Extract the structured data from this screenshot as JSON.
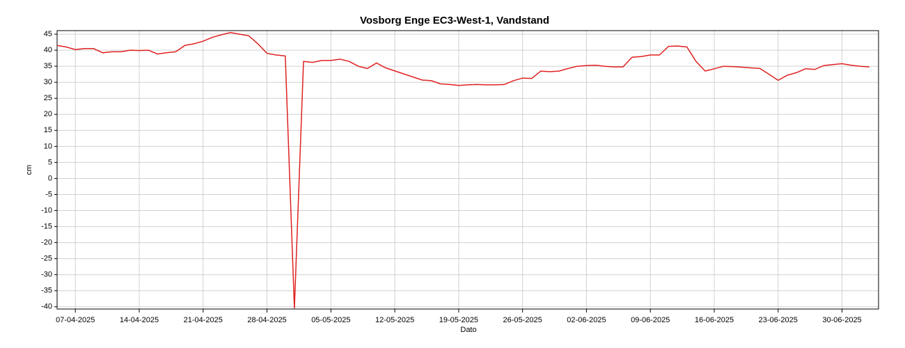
{
  "chart_data": {
    "type": "line",
    "title": "Vosborg Enge EC3-West-1, Vandstand",
    "xlabel": "Dato",
    "ylabel": "cm",
    "x": [
      "05-04-2025",
      "06-04-2025",
      "07-04-2025",
      "08-04-2025",
      "09-04-2025",
      "10-04-2025",
      "11-04-2025",
      "12-04-2025",
      "13-04-2025",
      "14-04-2025",
      "15-04-2025",
      "16-04-2025",
      "17-04-2025",
      "18-04-2025",
      "19-04-2025",
      "20-04-2025",
      "21-04-2025",
      "22-04-2025",
      "23-04-2025",
      "24-04-2025",
      "25-04-2025",
      "26-04-2025",
      "27-04-2025",
      "28-04-2025",
      "29-04-2025",
      "30-04-2025",
      "01-05-2025",
      "02-05-2025",
      "03-05-2025",
      "04-05-2025",
      "05-05-2025",
      "06-05-2025",
      "07-05-2025",
      "08-05-2025",
      "09-05-2025",
      "10-05-2025",
      "11-05-2025",
      "15-05-2025",
      "16-05-2025",
      "17-05-2025",
      "18-05-2025",
      "19-05-2025",
      "20-05-2025",
      "21-05-2025",
      "22-05-2025",
      "23-05-2025",
      "24-05-2025",
      "25-05-2025",
      "26-05-2025",
      "27-05-2025",
      "28-05-2025",
      "29-05-2025",
      "30-05-2025",
      "31-05-2025",
      "01-06-2025",
      "02-06-2025",
      "03-06-2025",
      "04-06-2025",
      "05-06-2025",
      "06-06-2025",
      "07-06-2025",
      "08-06-2025",
      "09-06-2025",
      "10-06-2025",
      "11-06-2025",
      "12-06-2025",
      "13-06-2025",
      "14-06-2025",
      "15-06-2025",
      "16-06-2025",
      "17-06-2025",
      "18-06-2025",
      "19-06-2025",
      "20-06-2025",
      "21-06-2025",
      "22-06-2025",
      "23-06-2025",
      "24-06-2025",
      "25-06-2025",
      "26-06-2025",
      "27-06-2025",
      "28-06-2025",
      "29-06-2025",
      "30-06-2025",
      "01-07-2025",
      "02-07-2025",
      "03-07-2025"
    ],
    "series": [
      {
        "name": "Vandstand",
        "color": "#e02020",
        "values": [
          41.5,
          41,
          40.2,
          40.5,
          40.5,
          39.2,
          39.5,
          39.5,
          40,
          39.9,
          40,
          38.8,
          39.2,
          39.5,
          41.5,
          42,
          42.8,
          44,
          44.8,
          45.5,
          45,
          44.5,
          42,
          39,
          38.5,
          38.2,
          -40.5,
          36.5,
          36.2,
          36.8,
          36.8,
          37.2,
          36.5,
          35,
          34.3,
          36,
          34.5,
          30.7,
          30.5,
          29.5,
          29.3,
          29,
          29.2,
          29.3,
          29.2,
          29.2,
          29.3,
          30.5,
          31.3,
          31.2,
          33.5,
          33.3,
          33.5,
          34.3,
          35,
          35.2,
          35.3,
          35,
          34.8,
          34.8,
          37.8,
          38,
          38.5,
          38.5,
          41.2,
          41.3,
          41,
          36.5,
          33.5,
          34.2,
          35,
          34.9,
          34.7,
          34.5,
          34.3,
          32.5,
          30.6,
          32.2,
          33,
          34.2,
          34,
          35.2,
          35.5,
          35.8,
          35.3,
          35,
          34.8
        ]
      }
    ],
    "xlim": [
      "05-04-2025",
      "04-07-2025"
    ],
    "xticks": [
      "07-04-2025",
      "14-04-2025",
      "21-04-2025",
      "28-04-2025",
      "05-05-2025",
      "12-05-2025",
      "19-05-2025",
      "26-05-2025",
      "02-06-2025",
      "09-06-2025",
      "16-06-2025",
      "23-06-2025",
      "30-06-2025"
    ],
    "ylim": [
      -40.7,
      46.1
    ],
    "yticks": [
      -40,
      -35,
      -30,
      -25,
      -20,
      -15,
      -10,
      -5,
      0,
      5,
      10,
      15,
      20,
      25,
      30,
      35,
      40,
      45
    ],
    "grid": true
  }
}
